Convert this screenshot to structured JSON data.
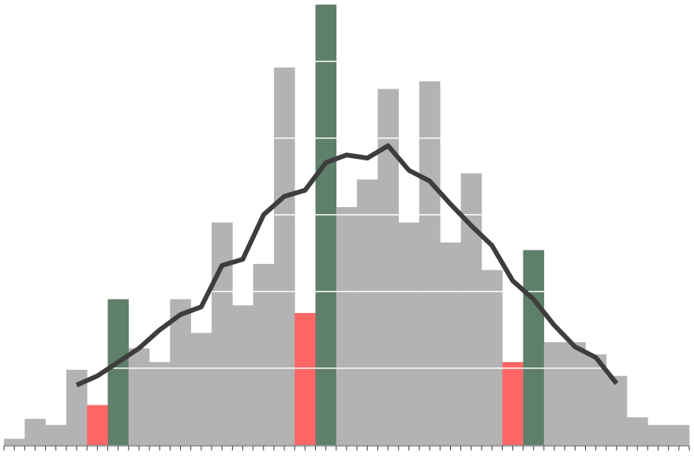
{
  "chart_data": {
    "type": "bar",
    "categories": [
      null,
      null,
      null,
      null,
      null,
      null,
      null,
      null,
      null,
      null,
      null,
      null,
      null,
      null,
      null,
      null,
      null,
      null,
      null,
      null,
      null,
      null,
      null,
      null,
      null,
      null,
      null,
      null,
      null,
      null,
      null,
      null,
      null
    ],
    "series": [
      {
        "type": "bar",
        "values": [
          0.4,
          1.7,
          1.3,
          4.9,
          2.6,
          9.5,
          6.3,
          5.4,
          9.5,
          7.3,
          14.5,
          9.1,
          11.8,
          24.6,
          8.6,
          28.7,
          15.5,
          17.3,
          23.2,
          14.5,
          23.7,
          13.2,
          17.7,
          11.4,
          5.4,
          12.7,
          6.7,
          6.7,
          5.9,
          4.5,
          1.8,
          1.3,
          1.3
        ],
        "colors": [
          "#b3b3b3",
          "#b3b3b3",
          "#b3b3b3",
          "#b3b3b3",
          "#ff6666",
          "#5e7f6a",
          "#b3b3b3",
          "#b3b3b3",
          "#b3b3b3",
          "#b3b3b3",
          "#b3b3b3",
          "#b3b3b3",
          "#b3b3b3",
          "#b3b3b3",
          "#ff6666",
          "#5e7f6a",
          "#b3b3b3",
          "#b3b3b3",
          "#b3b3b3",
          "#b3b3b3",
          "#b3b3b3",
          "#b3b3b3",
          "#b3b3b3",
          "#b3b3b3",
          "#ff6666",
          "#5e7f6a",
          "#b3b3b3",
          "#b3b3b3",
          "#b3b3b3",
          "#b3b3b3",
          "#b3b3b3",
          "#b3b3b3",
          "#b3b3b3"
        ]
      },
      {
        "type": "line",
        "color": "#3d3d3d",
        "values": [
          null,
          null,
          null,
          3.9,
          4.5,
          5.4,
          6.3,
          7.5,
          8.5,
          9.0,
          11.7,
          12.1,
          15.0,
          16.2,
          16.6,
          18.4,
          18.9,
          18.7,
          19.5,
          17.9,
          17.2,
          15.7,
          14.3,
          13.0,
          10.7,
          9.5,
          7.8,
          6.4,
          5.7,
          4.0,
          null,
          null,
          null
        ]
      }
    ],
    "ylim": [
      0,
      29
    ],
    "yticks": [
      5,
      10,
      15,
      20,
      25
    ],
    "grid": true,
    "grid_color": "#ffffff"
  }
}
